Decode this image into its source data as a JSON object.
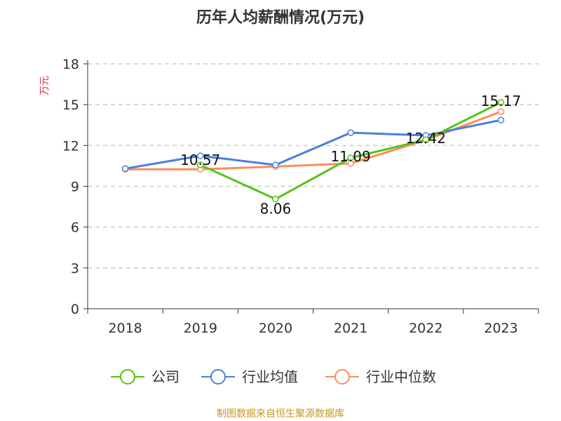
{
  "chart_data": {
    "type": "line",
    "title": "历年人均薪酬情况(万元)",
    "ylabel": "万元",
    "categories": [
      "2018",
      "2019",
      "2020",
      "2021",
      "2022",
      "2023"
    ],
    "ylim": [
      0,
      18
    ],
    "yticks": [
      0,
      3,
      6,
      9,
      12,
      15,
      18
    ],
    "grid": true,
    "legend_placement": "bottom",
    "series": [
      {
        "name": "公司",
        "color": "#52c41a",
        "values": [
          null,
          10.57,
          8.06,
          11.09,
          12.42,
          15.17
        ],
        "labels": true
      },
      {
        "name": "行业均值",
        "color": "#4a7fe0",
        "values": [
          10.3,
          11.24,
          10.57,
          12.94,
          12.74,
          13.87
        ]
      },
      {
        "name": "行业中位数",
        "color": "#ff8c55",
        "values": [
          10.25,
          10.25,
          10.45,
          10.68,
          12.4,
          14.49
        ]
      }
    ]
  },
  "footer": "制图数据来自恒生聚源数据库"
}
